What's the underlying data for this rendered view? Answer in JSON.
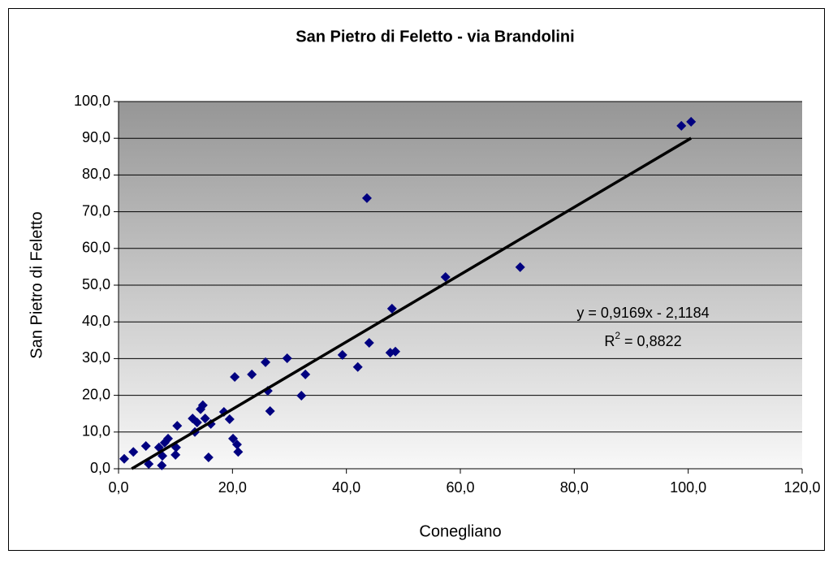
{
  "chart_data": {
    "type": "scatter",
    "title": "San Pietro di Feletto - via Brandolini",
    "x_label": "Conegliano",
    "y_label": "San Pietro di Feletto",
    "series": [
      {
        "color": "#000080",
        "x": [
          1.0,
          2.6,
          4.8,
          5.3,
          7.1,
          7.7,
          7.6,
          8.1,
          8.7,
          10.0,
          10.1,
          10.3,
          13.0,
          13.4,
          13.8,
          14.4,
          14.8,
          15.2,
          15.8,
          16.2,
          18.5,
          19.5,
          20.1,
          20.4,
          20.8,
          21.0,
          23.4,
          25.8,
          26.2,
          26.6,
          29.6,
          32.1,
          32.8,
          39.3,
          42.0,
          43.6,
          44.0,
          47.7,
          48.0,
          48.6,
          57.4,
          70.5,
          98.8,
          100.5
        ],
        "values": [
          2.7,
          4.6,
          6.2,
          1.3,
          5.8,
          3.5,
          0.9,
          7.1,
          8.2,
          3.8,
          5.8,
          11.7,
          13.7,
          10.0,
          12.6,
          16.2,
          17.3,
          13.7,
          3.1,
          12.2,
          15.5,
          13.5,
          8.2,
          25.0,
          6.6,
          4.6,
          25.7,
          29.0,
          21.2,
          15.7,
          30.1,
          19.9,
          25.7,
          31.0,
          27.7,
          73.7,
          34.3,
          31.6,
          43.6,
          31.9,
          52.2,
          54.9,
          93.4,
          94.5
        ]
      }
    ],
    "trendline": {
      "slope": 0.9169,
      "intercept": -2.1184,
      "color": "#000000",
      "equation": "y = 0,9169x - 2,1184",
      "r2_prefix": "R",
      "r2_sup": "2",
      "r2_rest": " = 0,8822"
    },
    "xlim": [
      0,
      120
    ],
    "xticks": [
      {
        "value": 0,
        "label": "0,0"
      },
      {
        "value": 20,
        "label": "20,0"
      },
      {
        "value": 40,
        "label": "40,0"
      },
      {
        "value": 60,
        "label": "60,0"
      },
      {
        "value": 80,
        "label": "80,0"
      },
      {
        "value": 100,
        "label": "100,0"
      },
      {
        "value": 120,
        "label": "120,0"
      }
    ],
    "ylim": [
      0,
      100
    ],
    "yticks": [
      {
        "value": 0,
        "label": "0,0"
      },
      {
        "value": 10,
        "label": "10,0"
      },
      {
        "value": 20,
        "label": "20,0"
      },
      {
        "value": 30,
        "label": "30,0"
      },
      {
        "value": 40,
        "label": "40,0"
      },
      {
        "value": 50,
        "label": "50,0"
      },
      {
        "value": 60,
        "label": "60,0"
      },
      {
        "value": 70,
        "label": "70,0"
      },
      {
        "value": 80,
        "label": "80,0"
      },
      {
        "value": 90,
        "label": "90,0"
      },
      {
        "value": 100,
        "label": "100,0"
      }
    ],
    "grid": true
  }
}
